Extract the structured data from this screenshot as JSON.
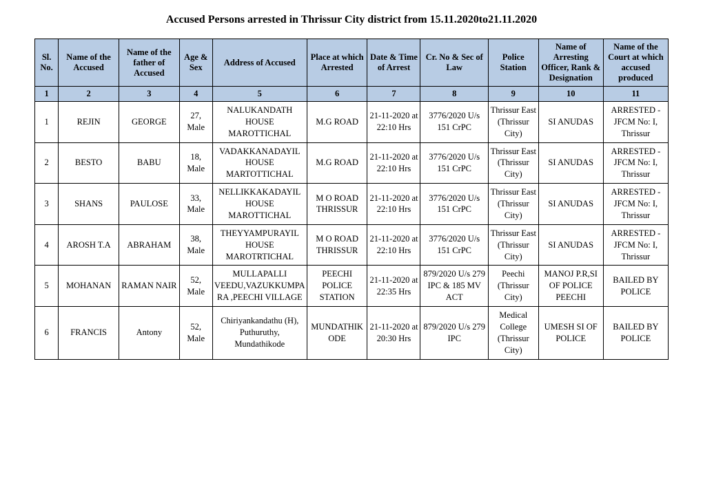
{
  "title": "Accused Persons arrested in   Thrissur City  district from   15.11.2020to21.11.2020",
  "columns": [
    "Sl. No.",
    "Name of the Accused",
    "Name of the father of Accused",
    "Age & Sex",
    "Address of Accused",
    "Place at which Arrested",
    "Date & Time of Arrest",
    "Cr. No & Sec of Law",
    "Police Station",
    "Name of Arresting Officer, Rank & Designation",
    "Name of the Court at which accused produced"
  ],
  "numrow": [
    "1",
    "2",
    "3",
    "4",
    "5",
    "6",
    "7",
    "8",
    "9",
    "10",
    "11"
  ],
  "rows": [
    {
      "sl": "1",
      "accused": "REJIN",
      "father": "GEORGE",
      "age_sex": "27, Male",
      "address": "NALUKANDATH HOUSE MAROTTICHAL",
      "place": "M.G ROAD",
      "datetime": "21-11-2020 at 22:10 Hrs",
      "crno": "3776/2020 U/s 151 CrPC",
      "station": "Thrissur East (Thrissur City)",
      "officer": "SI ANUDAS",
      "court": "ARRESTED - JFCM No: I, Thrissur"
    },
    {
      "sl": "2",
      "accused": "BESTO",
      "father": "BABU",
      "age_sex": "18, Male",
      "address": "VADAKKANADAYIL HOUSE MARTOTTICHAL",
      "place": "M.G ROAD",
      "datetime": "21-11-2020 at 22:10 Hrs",
      "crno": "3776/2020 U/s 151 CrPC",
      "station": "Thrissur East (Thrissur City)",
      "officer": "SI ANUDAS",
      "court": "ARRESTED - JFCM No: I, Thrissur"
    },
    {
      "sl": "3",
      "accused": "SHANS",
      "father": "PAULOSE",
      "age_sex": "33, Male",
      "address": "NELLIKKAKADAYIL HOUSE MAROTTICHAL",
      "place": "M O ROAD THRISSUR",
      "datetime": "21-11-2020 at 22:10 Hrs",
      "crno": "3776/2020 U/s 151 CrPC",
      "station": "Thrissur East (Thrissur City)",
      "officer": "SI ANUDAS",
      "court": "ARRESTED - JFCM No: I, Thrissur"
    },
    {
      "sl": "4",
      "accused": "AROSH T.A",
      "father": "ABRAHAM",
      "age_sex": "38, Male",
      "address": "THEYYAMPURAYIL HOUSE MAROTRTICHAL",
      "place": "M O ROAD THRISSUR",
      "datetime": "21-11-2020 at 22:10 Hrs",
      "crno": "3776/2020 U/s 151 CrPC",
      "station": "Thrissur East (Thrissur City)",
      "officer": "SI ANUDAS",
      "court": "ARRESTED - JFCM No: I, Thrissur"
    },
    {
      "sl": "5",
      "accused": "MOHANAN",
      "father": "RAMAN NAIR",
      "age_sex": "52, Male",
      "address": "MULLAPALLI VEEDU,VAZUKKUMPARA ,PEECHI VILLAGE",
      "place": "PEECHI POLICE STATION",
      "datetime": "21-11-2020 at 22:35 Hrs",
      "crno": "879/2020 U/s 279 IPC & 185 MV ACT",
      "station": "Peechi (Thrissur City)",
      "officer": "MANOJ P.R,SI OF POLICE PEECHI",
      "court": "BAILED BY POLICE"
    },
    {
      "sl": "6",
      "accused": "FRANCIS",
      "father": "Antony",
      "age_sex": "52, Male",
      "address": "Chiriyankandathu (H), Puthuruthy, Mundathikode",
      "place": "MUNDATHIKODE",
      "datetime": "21-11-2020 at 20:30 Hrs",
      "crno": "879/2020 U/s 279 IPC",
      "station": "Medical College (Thrissur City)",
      "officer": "UMESH SI OF POLICE",
      "court": "BAILED BY POLICE"
    }
  ]
}
